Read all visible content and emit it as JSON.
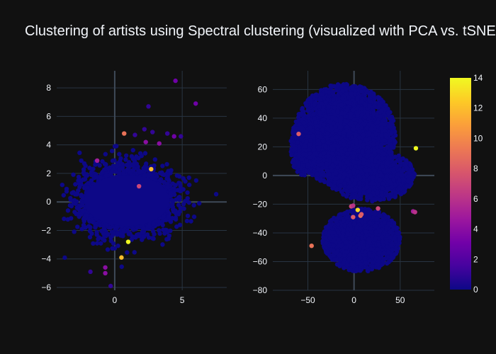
{
  "chart_data": [
    {
      "type": "scatter",
      "name": "PCA",
      "xlim": [
        -4.3,
        8.3
      ],
      "ylim": [
        -6.2,
        9.2
      ],
      "x_ticks": [
        0,
        5
      ],
      "y_ticks": [
        -6,
        -4,
        -2,
        0,
        2,
        4,
        6,
        8
      ],
      "x_tick_labels": [
        "0",
        "5"
      ],
      "y_tick_labels": [
        "−6",
        "−4",
        "−2",
        "0",
        "2",
        "4",
        "6",
        "8"
      ],
      "grid": true,
      "cloud": {
        "center": [
          0.9,
          0.1
        ],
        "spread": [
          2.0,
          1.35
        ]
      },
      "points": [
        {
          "x": 4.5,
          "y": 8.5,
          "c": 3
        },
        {
          "x": 6.0,
          "y": 6.9,
          "c": 3
        },
        {
          "x": 2.5,
          "y": 6.7,
          "c": 1
        },
        {
          "x": 2.2,
          "y": 5.1,
          "c": 1
        },
        {
          "x": 0.7,
          "y": 4.8,
          "c": 9
        },
        {
          "x": 1.5,
          "y": 4.7,
          "c": 1
        },
        {
          "x": 2.8,
          "y": 4.9,
          "c": 1
        },
        {
          "x": 3.9,
          "y": 4.8,
          "c": 1
        },
        {
          "x": 4.4,
          "y": 4.6,
          "c": 3
        },
        {
          "x": 4.9,
          "y": 4.6,
          "c": 1
        },
        {
          "x": 2.3,
          "y": 4.2,
          "c": 4
        },
        {
          "x": 3.3,
          "y": 4.1,
          "c": 4
        },
        {
          "x": -1.3,
          "y": 2.9,
          "c": 5
        },
        {
          "x": 2.7,
          "y": 2.3,
          "c": 12
        },
        {
          "x": 1.8,
          "y": 1.1,
          "c": 7
        },
        {
          "x": 1.0,
          "y": -2.8,
          "c": 14
        },
        {
          "x": 0.5,
          "y": -3.9,
          "c": 12
        },
        {
          "x": -0.7,
          "y": -4.6,
          "c": 4
        },
        {
          "x": -0.7,
          "y": -5.0,
          "c": 4
        },
        {
          "x": -0.3,
          "y": -5.9,
          "c": 1
        },
        {
          "x": -1.8,
          "y": -4.9,
          "c": 1
        }
      ]
    },
    {
      "type": "scatter",
      "name": "tSNE",
      "xlim": [
        -88,
        87
      ],
      "ylim": [
        -80,
        73
      ],
      "x_ticks": [
        -50,
        0,
        50
      ],
      "y_ticks": [
        -80,
        -60,
        -40,
        -20,
        0,
        20,
        40,
        60
      ],
      "x_tick_labels": [
        "−50",
        "0",
        "50"
      ],
      "y_tick_labels": [
        "−80",
        "−60",
        "−40",
        "−20",
        "0",
        "20",
        "40",
        "60"
      ],
      "grid": true,
      "points": [
        {
          "x": -60,
          "y": 29,
          "c": 8
        },
        {
          "x": 67,
          "y": 19,
          "c": 14
        },
        {
          "x": 64,
          "y": -25,
          "c": 5
        },
        {
          "x": 66,
          "y": -25.5,
          "c": 6
        },
        {
          "x": -46,
          "y": -49,
          "c": 9
        },
        {
          "x": 4,
          "y": -24,
          "c": 13
        },
        {
          "x": 7,
          "y": -28,
          "c": 9
        },
        {
          "x": 8,
          "y": -27,
          "c": 8
        },
        {
          "x": -1,
          "y": -29,
          "c": 8
        },
        {
          "x": -3,
          "y": -21.5,
          "c": 7
        },
        {
          "x": -1,
          "y": -21,
          "c": 6
        },
        {
          "x": 26,
          "y": -23,
          "c": 7
        }
      ]
    }
  ],
  "title": "Clustering of artists using Spectral clustering (visualized with PCA vs. tSNE)",
  "colorbar": {
    "min": 0,
    "max": 14,
    "tick_values": [
      0,
      2,
      4,
      6,
      8,
      10,
      12,
      14
    ],
    "tick_labels": [
      "0",
      "2",
      "4",
      "6",
      "8",
      "10",
      "12",
      "14"
    ],
    "colorscale": [
      "#0d0887",
      "#46039f",
      "#7201a8",
      "#9c179e",
      "#bd3786",
      "#d8576b",
      "#ed7953",
      "#fb9f3a",
      "#fdca26",
      "#f0f921"
    ]
  },
  "colors": {
    "background": "#111111",
    "grid": "#283442",
    "zeroline": "#3f4a58",
    "text": "#f2f5fa"
  }
}
